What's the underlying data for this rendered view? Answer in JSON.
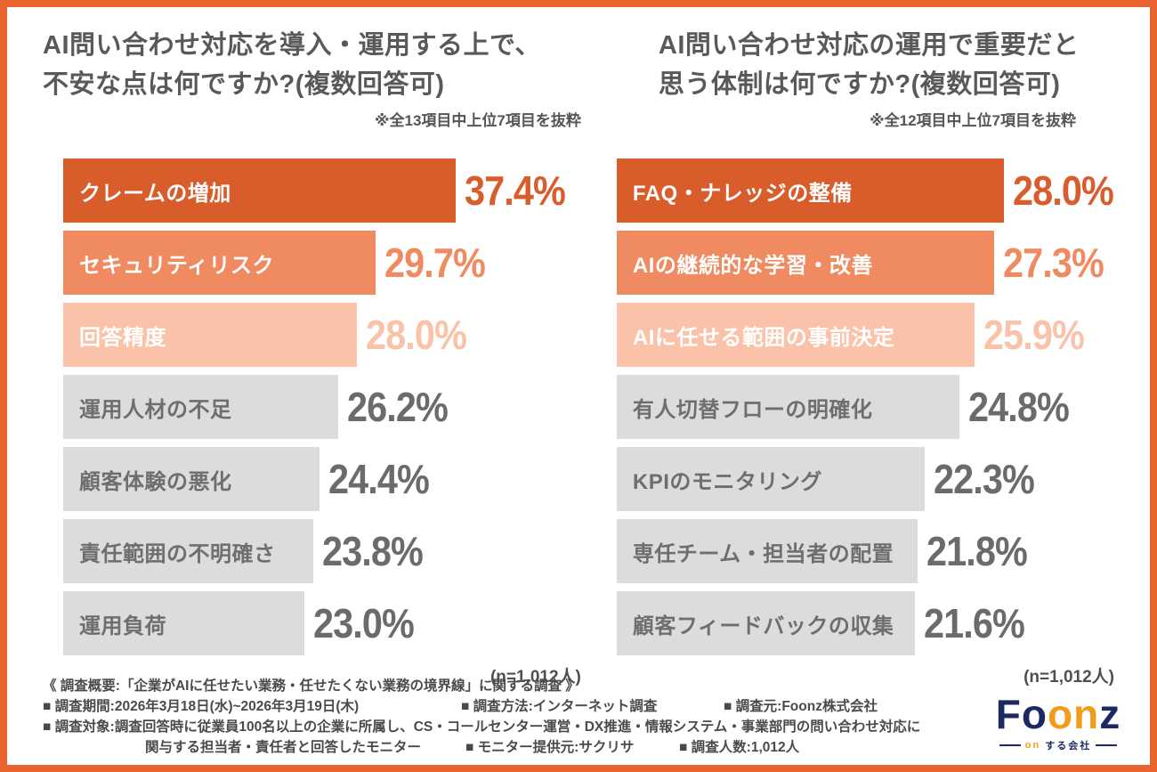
{
  "frame": {
    "border_color": "#E8632E",
    "background": "#FFFFFF"
  },
  "style": {
    "bar_colors": [
      "#D95C2B",
      "#F08A60",
      "#FAC2A8",
      "#DCDCDC"
    ],
    "value_colors": [
      "#D95C2B",
      "#F08A60",
      "#FAC2A8",
      "#6B6B6B"
    ],
    "label_on_bar_color": "#FFFFFF",
    "label_gray_color": "#6E6E6E",
    "title_color": "#595959"
  },
  "chart_data": [
    {
      "type": "bar",
      "orientation": "horizontal",
      "title_lines": [
        "AI問い合わせ対応を導入・運用する上で、",
        "不安な点は何ですか?(複数回答可)"
      ],
      "note": "※全13項目中上位7項目を抜粋",
      "categories": [
        "クレームの増加",
        "セキュリティリスク",
        "回答精度",
        "運用人材の不足",
        "顧客体験の悪化",
        "責任範囲の不明確さ",
        "運用負荷"
      ],
      "values": [
        37.4,
        29.7,
        28.0,
        26.2,
        24.4,
        23.8,
        23.0
      ],
      "value_labels": [
        "37.4%",
        "29.7%",
        "28.0%",
        "26.2%",
        "24.4%",
        "23.8%",
        "23.0%"
      ],
      "xlim": [
        0,
        49.3
      ],
      "n_label": "(n=1,012人)"
    },
    {
      "type": "bar",
      "orientation": "horizontal",
      "title_lines": [
        "AI問い合わせ対応の運用で重要だと",
        "思う体制は何ですか?(複数回答可)"
      ],
      "note": "※全12項目中上位7項目を抜粋",
      "categories": [
        "FAQ・ナレッジの整備",
        "AIの継続的な学習・改善",
        "AIに任せる範囲の事前決定",
        "有人切替フローの明確化",
        "KPIのモニタリング",
        "専任チーム・担当者の配置",
        "顧客フィードバックの収集"
      ],
      "values": [
        28.0,
        27.3,
        25.9,
        24.8,
        22.3,
        21.8,
        21.6
      ],
      "value_labels": [
        "28.0%",
        "27.3%",
        "25.9%",
        "24.8%",
        "22.3%",
        "21.8%",
        "21.6%"
      ],
      "xlim": [
        0,
        36.0
      ],
      "n_label": "(n=1,012人)"
    }
  ],
  "footer": {
    "heading": "《 調査概要:「企業がAIに任せたい業務・任せたくない業務の境界線」に関する調査 》",
    "line2": [
      "■ 調査期間:2026年3月18日(水)~2026年3月19日(木)",
      "■ 調査方法:インターネット調査",
      "■ 調査元:Foonz株式会社"
    ],
    "line3": "■ 調査対象:調査回答時に従業員100名以上の企業に所属し、CS・コールセンター運営・DX推進・情報システム・事業部門の問い合わせ対応に",
    "line4": [
      "関与する担当者・責任者と回答したモニター",
      "■ モニター提供元:サクリサ",
      "■ 調査人数:1,012人"
    ]
  },
  "logo": {
    "wordmark": "Foonz",
    "letter_colors": [
      "#1D2963",
      "#1D2963",
      "#F39C1B",
      "#F39C1B",
      "#1D2963"
    ],
    "tagline_on": "on",
    "tagline_company": "する会社",
    "navy": "#1D2963",
    "orange": "#F39C1B"
  }
}
